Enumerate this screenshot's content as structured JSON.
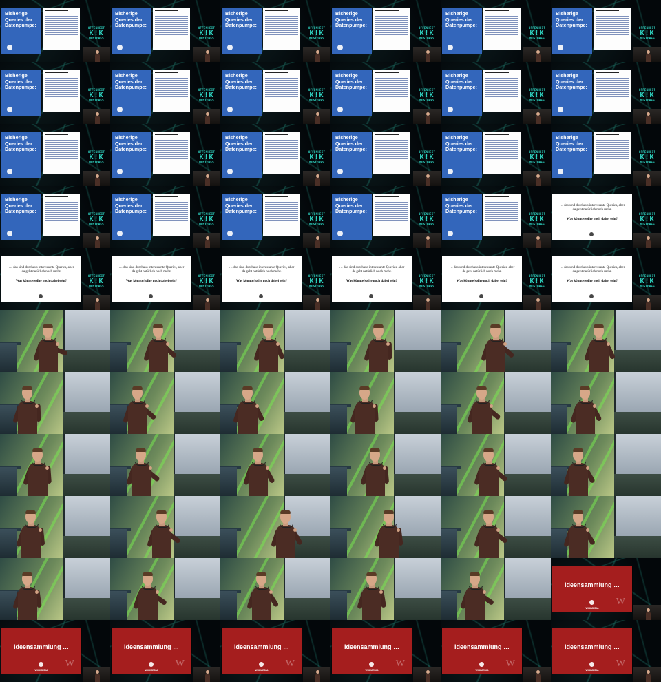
{
  "grid": {
    "columns": 6,
    "rows": 11
  },
  "slides": {
    "blue": {
      "title": "Bisherige Queries der Datenpumpe:",
      "color": "#3366bb"
    },
    "white": {
      "line1": "… das sind durchaus interessante Queries, aber da geht natürlich noch mehr.",
      "line2": "Was könnte/sollte noch dabei sein?"
    },
    "red": {
      "title": "Ideensammlung …",
      "logo_text": "WIKIMEDIA",
      "glyph": "W",
      "color": "#a51e1e"
    }
  },
  "conference_logo": {
    "line1": "OFFENHEIT",
    "line2": "K!K",
    "line3": "MUSTORES",
    "color": "#2fd3c1"
  },
  "frame_sequence": [
    "blue",
    "blue",
    "blue",
    "blue",
    "blue",
    "blue",
    "blue",
    "blue",
    "blue",
    "blue",
    "blue",
    "blue",
    "blue",
    "blue",
    "blue",
    "blue",
    "blue",
    "blue",
    "blue",
    "blue",
    "blue",
    "blue",
    "blue",
    "white",
    "white",
    "white",
    "white",
    "white",
    "white",
    "white",
    "stage",
    "stage",
    "stage",
    "stage",
    "stage",
    "stage",
    "stage",
    "stage",
    "stage",
    "stage",
    "stage",
    "stage",
    "stage",
    "stage",
    "stage",
    "stage",
    "stage",
    "stage",
    "stage",
    "stage",
    "stage",
    "stage",
    "stage",
    "stage",
    "stage",
    "stage",
    "stage",
    "stage",
    "stage",
    "red",
    "red",
    "red",
    "red",
    "red",
    "red",
    "red"
  ]
}
